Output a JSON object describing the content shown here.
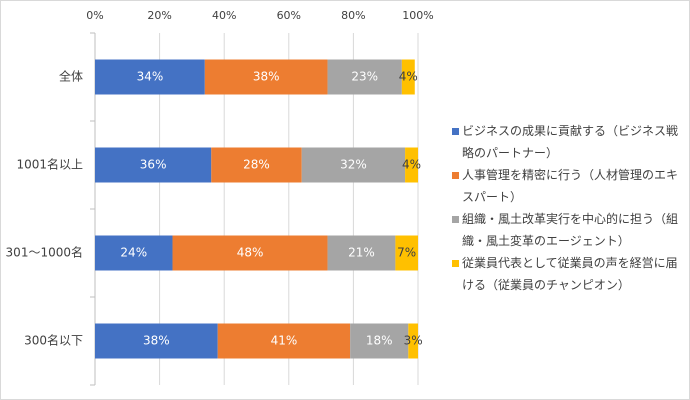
{
  "chart_data": {
    "type": "stacked-bar-horizontal",
    "categories": [
      "全体",
      "1001名以上",
      "301～1000名",
      "300名以下"
    ],
    "series": [
      {
        "name": "ビジネスの成果に貢献する（ビジネス戦略のパートナー）",
        "color": "#4472c4",
        "values": [
          34,
          36,
          24,
          38
        ],
        "value_labels": [
          "34%",
          "36%",
          "24%",
          "38%"
        ]
      },
      {
        "name": "人事管理を精密に行う（人材管理のエキスパート）",
        "color": "#ed7d31",
        "values": [
          38,
          28,
          48,
          41
        ],
        "value_labels": [
          "38%",
          "28%",
          "48%",
          "41%"
        ]
      },
      {
        "name": "組織・風土改革実行を中心的に担う（組織・風土変革のエージェント）",
        "color": "#a5a5a5",
        "values": [
          23,
          32,
          21,
          18
        ],
        "value_labels": [
          "23%",
          "32%",
          "21%",
          "18%"
        ]
      },
      {
        "name": "従業員代表として従業員の声を経営に届ける（従業員のチャンピオン）",
        "color": "#ffc000",
        "values": [
          4,
          4,
          7,
          3
        ],
        "value_labels": [
          "4%",
          "4%",
          "7%",
          "3%"
        ]
      }
    ],
    "xlim": [
      0,
      100
    ],
    "xticks": [
      {
        "value": 0,
        "label": "0%"
      },
      {
        "value": 20,
        "label": "20%"
      },
      {
        "value": 40,
        "label": "40%"
      },
      {
        "value": 60,
        "label": "60%"
      },
      {
        "value": 80,
        "label": "80%"
      },
      {
        "value": 100,
        "label": "100%"
      }
    ],
    "grid": true,
    "legend": "right"
  }
}
